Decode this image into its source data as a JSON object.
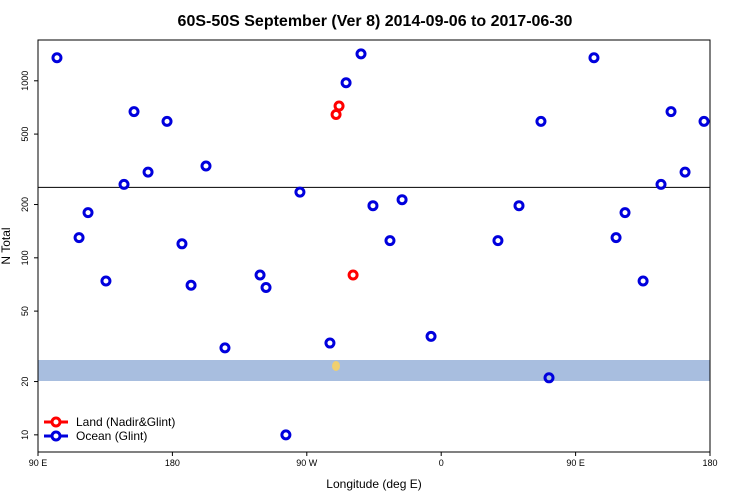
{
  "chart_data": {
    "type": "scatter",
    "title": "60S-50S September (Ver 8)   2014-09-06 to 2017-06-30",
    "x_label": "Longitude (deg E)",
    "y_label": "N Total",
    "log_y": true,
    "xlim": [
      90,
      540
    ],
    "ylim": [
      8,
      1700
    ],
    "xticks": [
      {
        "value": 90,
        "label": "90 E"
      },
      180,
      {
        "value": 270,
        "label": "90 W"
      },
      {
        "value": 360,
        "label": "0"
      },
      {
        "value": 450,
        "label": "90 E"
      },
      {
        "value": 540,
        "label": "180"
      }
    ],
    "yticks": [
      10,
      20,
      50,
      100,
      200,
      500,
      1000
    ],
    "reference_line": 250,
    "legend": "bottom-left",
    "series": [
      {
        "name": "Land (Nadir&Glint)",
        "color": "#ff0000",
        "x": [
          289.6,
          291.6,
          301.0
        ],
        "values": [
          645,
          720,
          80
        ]
      },
      {
        "name": "Ocean (Glint)",
        "color": "#0000dd",
        "x": [
          102.7,
          117.5,
          123.5,
          135.5,
          147.6,
          154.3,
          163.7,
          176.4,
          186.4,
          192.5,
          202.5,
          215.2,
          238.7,
          242.7,
          256.0,
          265.4,
          285.5,
          296.3,
          306.3,
          314.3,
          325.7,
          333.8,
          353.2,
          398.0,
          412.1,
          426.8,
          432.2,
          462.3,
          477.1,
          483.1,
          495.2,
          507.2,
          513.9,
          523.3,
          536.0
        ],
        "values": [
          1350,
          130,
          180,
          74,
          260,
          670,
          305,
          590,
          120,
          70,
          330,
          31,
          80,
          68,
          10,
          235,
          33,
          975,
          1420,
          197,
          125,
          213,
          36,
          125,
          197,
          590,
          21,
          1350,
          130,
          180,
          74,
          260,
          670,
          305,
          590
        ]
      }
    ]
  }
}
